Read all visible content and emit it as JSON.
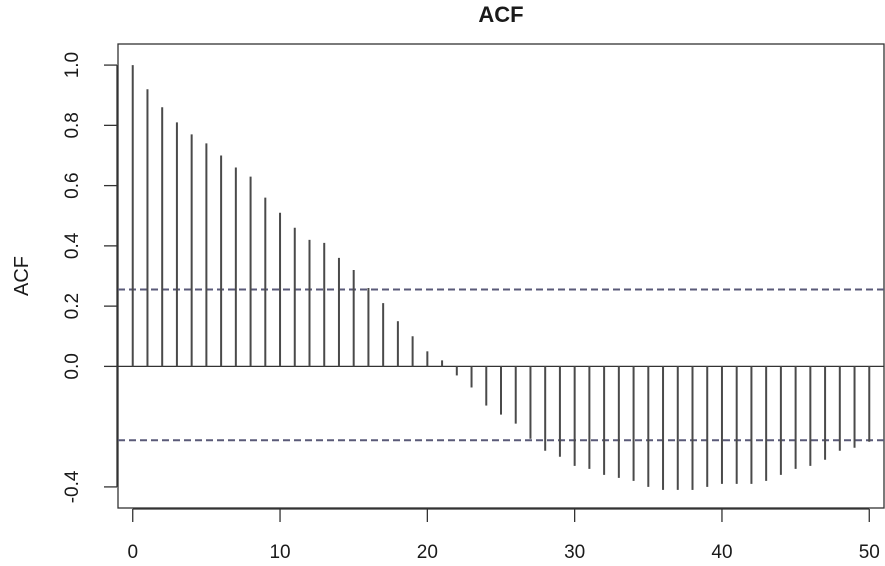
{
  "chart_data": {
    "type": "bar",
    "subtype": "acf-stem",
    "title": "ACF",
    "xlabel": "",
    "ylabel": "ACF",
    "xlim": [
      -1,
      51
    ],
    "ylim": [
      -0.47,
      1.07
    ],
    "x_ticks": [
      0,
      10,
      20,
      30,
      40,
      50
    ],
    "y_ticks": [
      -0.4,
      0.0,
      0.2,
      0.4,
      0.6,
      0.8,
      1.0
    ],
    "y_tick_labels": [
      "-0.4",
      "0.0",
      "0.2",
      "0.4",
      "0.6",
      "0.8",
      "1.0"
    ],
    "grid": false,
    "confidence_bounds": [
      0.255,
      -0.245
    ],
    "lags": [
      0,
      1,
      2,
      3,
      4,
      5,
      6,
      7,
      8,
      9,
      10,
      11,
      12,
      13,
      14,
      15,
      16,
      17,
      18,
      19,
      20,
      21,
      22,
      23,
      24,
      25,
      26,
      27,
      28,
      29,
      30,
      31,
      32,
      33,
      34,
      35,
      36,
      37,
      38,
      39,
      40,
      41,
      42,
      43,
      44,
      45,
      46,
      47,
      48,
      49,
      50
    ],
    "values": [
      1.0,
      0.92,
      0.86,
      0.81,
      0.77,
      0.74,
      0.7,
      0.66,
      0.63,
      0.56,
      0.51,
      0.46,
      0.42,
      0.41,
      0.36,
      0.32,
      0.26,
      0.21,
      0.15,
      0.1,
      0.05,
      0.02,
      -0.03,
      -0.07,
      -0.13,
      -0.16,
      -0.19,
      -0.24,
      -0.28,
      -0.3,
      -0.33,
      -0.34,
      -0.36,
      -0.37,
      -0.38,
      -0.4,
      -0.41,
      -0.41,
      -0.41,
      -0.4,
      -0.39,
      -0.39,
      -0.39,
      -0.38,
      -0.36,
      -0.34,
      -0.33,
      -0.31,
      -0.28,
      -0.27,
      -0.25
    ],
    "colors": {
      "bars": "#4a4a4a",
      "bounds": "#5a5a78",
      "axis": "#333333"
    }
  }
}
